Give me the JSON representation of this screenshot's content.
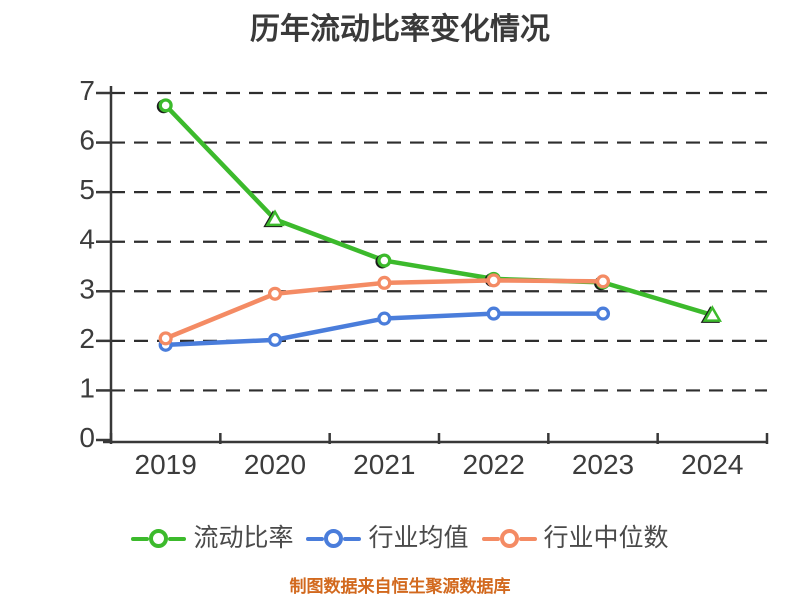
{
  "chart_data": {
    "type": "line",
    "title": "历年流动比率变化情况",
    "x_labels": [
      "2019",
      "2020",
      "2021",
      "2022",
      "2023",
      "2024"
    ],
    "y_ticks": [
      "0",
      "1",
      "2",
      "3",
      "4",
      "5",
      "6",
      "7"
    ],
    "ylim": [
      0,
      7
    ],
    "grid": "horizontal-dashed",
    "legend_position": "bottom",
    "series": [
      {
        "name": "流动比率",
        "color": "#3CBA2C",
        "points": [
          {
            "x": "2019",
            "y": 6.75,
            "marker": "circle"
          },
          {
            "x": "2020",
            "y": 4.45,
            "marker": "triangle"
          },
          {
            "x": "2021",
            "y": 3.62,
            "marker": "circle"
          },
          {
            "x": "2022",
            "y": 3.25,
            "marker": "circle"
          },
          {
            "x": "2023",
            "y": 3.18,
            "marker": "circle"
          },
          {
            "x": "2024",
            "y": 2.52,
            "marker": "triangle"
          }
        ]
      },
      {
        "name": "行业均值",
        "color": "#4A7DDB",
        "points": [
          {
            "x": "2019",
            "y": 1.92,
            "marker": "circle"
          },
          {
            "x": "2020",
            "y": 2.02,
            "marker": "circle"
          },
          {
            "x": "2021",
            "y": 2.45,
            "marker": "circle"
          },
          {
            "x": "2022",
            "y": 2.55,
            "marker": "circle"
          },
          {
            "x": "2023",
            "y": 2.55,
            "marker": "circle"
          }
        ]
      },
      {
        "name": "行业中位数",
        "color": "#F48B64",
        "points": [
          {
            "x": "2019",
            "y": 2.05,
            "marker": "circle"
          },
          {
            "x": "2020",
            "y": 2.95,
            "marker": "circle"
          },
          {
            "x": "2021",
            "y": 3.17,
            "marker": "circle"
          },
          {
            "x": "2022",
            "y": 3.22,
            "marker": "circle"
          },
          {
            "x": "2023",
            "y": 3.2,
            "marker": "circle"
          }
        ]
      }
    ]
  },
  "caption": {
    "text": "制图数据来自恒生聚源数据库",
    "color": "#D2691E"
  },
  "colors": {
    "background": "#FFFFFF",
    "title": "#3A3A3A",
    "axis": "#383838",
    "tick_label": "#3C3C3C",
    "grid": "#2E2E2E",
    "marker_fill": "#FFFFFF",
    "marker_shadow": "#1B1B1B",
    "legend_text": "#4A4A4A"
  }
}
